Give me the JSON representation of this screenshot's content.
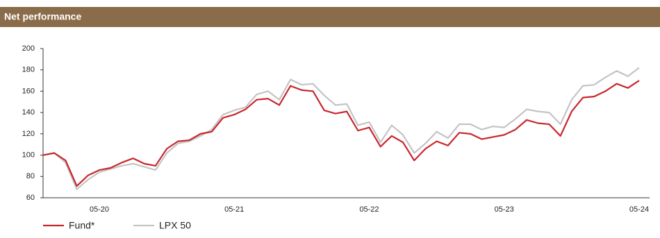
{
  "chart_data": {
    "type": "line",
    "title": "Net performance",
    "categories": [
      null,
      null,
      null,
      null,
      null,
      "05-20",
      null,
      null,
      null,
      null,
      null,
      null,
      null,
      null,
      null,
      null,
      null,
      "05-21",
      null,
      null,
      null,
      null,
      null,
      null,
      null,
      null,
      null,
      null,
      null,
      "05-22",
      null,
      null,
      null,
      null,
      null,
      null,
      null,
      null,
      null,
      null,
      null,
      "05-23",
      null,
      null,
      null,
      null,
      null,
      null,
      null,
      null,
      null,
      null,
      null,
      "05-24"
    ],
    "series": [
      {
        "name": "Fund*",
        "color": "#c8262c",
        "values": [
          100,
          102,
          95,
          71,
          81,
          86,
          88,
          93,
          97,
          92,
          90,
          106,
          113,
          114,
          120,
          122,
          135,
          138,
          143,
          152,
          153,
          147,
          165,
          161,
          160,
          142,
          139,
          141,
          123,
          126,
          108,
          118,
          112,
          95,
          106,
          113,
          109,
          121,
          120,
          115,
          117,
          119,
          124,
          133,
          130,
          129,
          118,
          141,
          154,
          155,
          160,
          167,
          163,
          170
        ]
      },
      {
        "name": "LPX 50",
        "color": "#c4c4c4",
        "values": [
          100,
          102,
          93,
          68,
          77,
          84,
          87,
          90,
          92,
          89,
          86,
          102,
          111,
          113,
          118,
          124,
          138,
          142,
          145,
          157,
          160,
          152,
          171,
          166,
          167,
          156,
          147,
          148,
          128,
          131,
          112,
          128,
          119,
          102,
          111,
          122,
          116,
          129,
          129,
          124,
          127,
          126,
          134,
          143,
          141,
          140,
          129,
          152,
          165,
          166,
          173,
          179,
          174,
          182
        ]
      }
    ],
    "ylim": [
      60,
      200
    ],
    "yticks": [
      60,
      80,
      100,
      120,
      140,
      160,
      180,
      200
    ]
  }
}
